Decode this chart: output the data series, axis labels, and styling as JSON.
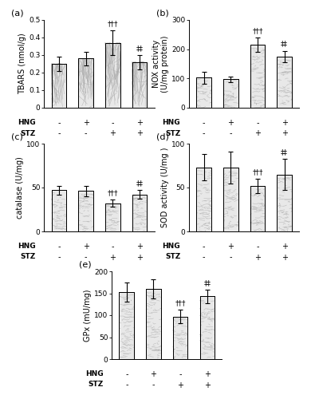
{
  "panels": [
    {
      "label": "(a)",
      "ylabel": "TBARS (nmol/g)",
      "ylim": [
        0,
        0.5
      ],
      "yticks": [
        0,
        0.1,
        0.2,
        0.3,
        0.4,
        0.5
      ],
      "yticklabels": [
        "0",
        "0.1",
        "0.2",
        "0.3",
        "0.4",
        "0.5"
      ],
      "values": [
        0.25,
        0.28,
        0.37,
        0.26
      ],
      "errors": [
        0.04,
        0.04,
        0.07,
        0.04
      ],
      "sig_top": [
        "",
        "",
        "†††",
        "‡‡"
      ]
    },
    {
      "label": "(b)",
      "ylabel": "NOX activity\n(U/mg protein)",
      "ylim": [
        0,
        300
      ],
      "yticks": [
        0,
        100,
        200,
        300
      ],
      "yticklabels": [
        "0",
        "100",
        "200",
        "300"
      ],
      "values": [
        103,
        97,
        215,
        175
      ],
      "errors": [
        20,
        10,
        25,
        20
      ],
      "sig_top": [
        "",
        "",
        "†††",
        "‡‡"
      ]
    },
    {
      "label": "(c)",
      "ylabel": "catalase (U/mg)",
      "ylim": [
        0,
        100
      ],
      "yticks": [
        0,
        50,
        100
      ],
      "yticklabels": [
        "0",
        "50",
        "100"
      ],
      "values": [
        47,
        46,
        32,
        42
      ],
      "errors": [
        5,
        6,
        4,
        5
      ],
      "sig_top": [
        "",
        "",
        "†††",
        "‡‡"
      ]
    },
    {
      "label": "(d)",
      "ylabel": "SOD activity (U/mg )",
      "ylim": [
        0,
        100
      ],
      "yticks": [
        0,
        50,
        100
      ],
      "yticklabels": [
        "0",
        "50",
        "100"
      ],
      "values": [
        73,
        73,
        52,
        65
      ],
      "errors": [
        15,
        18,
        8,
        18
      ],
      "sig_top": [
        "",
        "",
        "†††",
        "‡‡"
      ]
    },
    {
      "label": "(e)",
      "ylabel": "GPx (mU/mg)",
      "ylim": [
        0,
        200
      ],
      "yticks": [
        0,
        50,
        100,
        150,
        200
      ],
      "yticklabels": [
        "0",
        "50",
        "100",
        "150",
        "200"
      ],
      "values": [
        153,
        160,
        97,
        143
      ],
      "errors": [
        22,
        22,
        15,
        15
      ],
      "sig_top": [
        "",
        "",
        "†††",
        "‡‡"
      ]
    }
  ],
  "hng_labels": [
    "-",
    "+",
    "-",
    "+"
  ],
  "stz_labels": [
    "-",
    "-",
    "+",
    "+"
  ],
  "bar_facecolor": "#e8e8e8",
  "bar_edgecolor": "#000000",
  "bar_width": 0.55,
  "background_color": "#ffffff"
}
